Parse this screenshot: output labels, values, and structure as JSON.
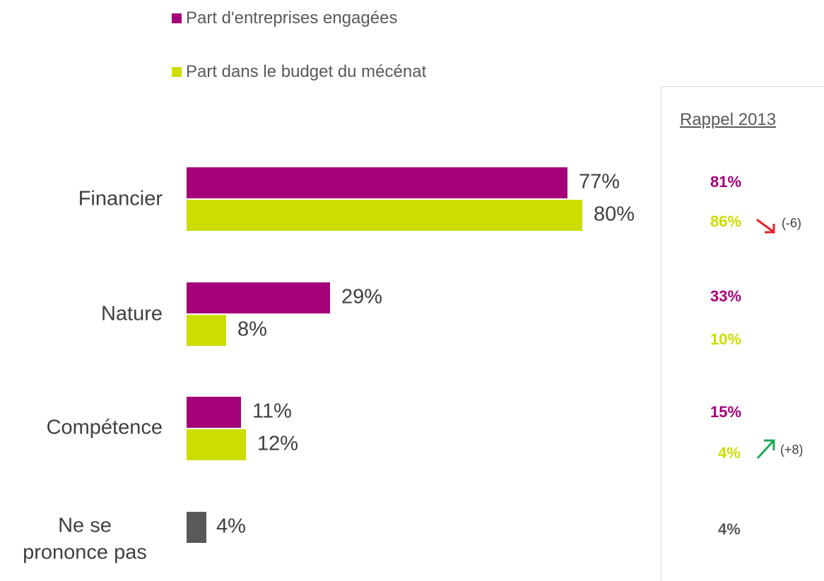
{
  "colors": {
    "engaged": "#A3007A",
    "budget": "#CCDD00",
    "nsp": "#595959",
    "arrow_down": "#E8202A",
    "arrow_up": "#1FA85A"
  },
  "legend": [
    {
      "label": "Part d'entreprises engagées",
      "color": "#A3007A"
    },
    {
      "label": "Part dans le budget du mécénat",
      "color": "#CCDD00"
    }
  ],
  "chart_data": {
    "type": "bar",
    "orientation": "horizontal",
    "categories": [
      "Financier",
      "Nature",
      "Compétence",
      "Ne se prononce pas"
    ],
    "series": [
      {
        "name": "Part d'entreprises engagées",
        "values": [
          77,
          29,
          11,
          null
        ]
      },
      {
        "name": "Part dans le budget du mécénat",
        "values": [
          80,
          8,
          12,
          null
        ]
      }
    ],
    "nsp_value": 4,
    "value_labels": {
      "engaged": [
        "77%",
        "29%",
        "11%"
      ],
      "budget": [
        "80%",
        "8%",
        "12%"
      ],
      "nsp": "4%"
    },
    "xlim": [
      0,
      100
    ],
    "legend_position": "top-left"
  },
  "rappel": {
    "title": "Rappel 2013",
    "financier": {
      "engaged": "81%",
      "budget": "86%",
      "delta": "(-6)"
    },
    "nature": {
      "engaged": "33%",
      "budget": "10%"
    },
    "competence": {
      "engaged": "15%",
      "budget": "4%",
      "delta": "(+8)"
    },
    "nsp": "4%"
  },
  "icons": {
    "decrease": "arrow-down-right-icon",
    "increase": "arrow-up-right-icon"
  }
}
